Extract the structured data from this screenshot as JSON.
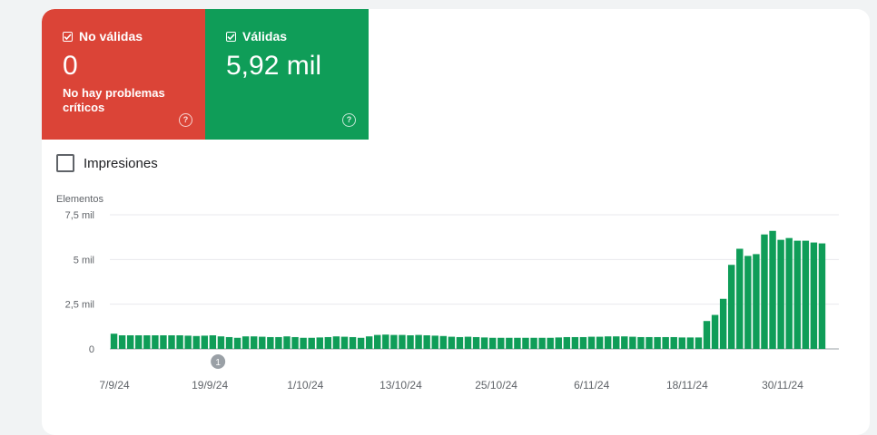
{
  "status": {
    "invalid": {
      "label": "No válidas",
      "value": "0",
      "subtitle": "No hay problemas críticos",
      "color": "#db4437",
      "icon": "checkbox-checked-icon",
      "help_icon": "help-circle-icon"
    },
    "valid": {
      "label": "Válidas",
      "value": "5,92 mil",
      "color": "#0f9d58",
      "icon": "checkbox-checked-icon",
      "help_icon": "help-circle-icon"
    }
  },
  "impressions_toggle": {
    "label": "Impresiones",
    "checked": false
  },
  "chart_data": {
    "type": "bar",
    "ylabel": "Elementos",
    "yticks": [
      "0",
      "2,5 mil",
      "5 mil",
      "7,5 mil"
    ],
    "ylim": [
      0,
      7500
    ],
    "xticks": [
      "7/9/24",
      "19/9/24",
      "1/10/24",
      "13/10/24",
      "25/10/24",
      "6/11/24",
      "18/11/24",
      "30/11/24"
    ],
    "annotation": {
      "label": "1",
      "x": "19/9/24"
    },
    "color": "#0f9d58",
    "grid": true,
    "values": [
      850,
      760,
      760,
      760,
      760,
      760,
      760,
      760,
      760,
      740,
      720,
      740,
      760,
      700,
      660,
      620,
      700,
      700,
      680,
      660,
      660,
      700,
      660,
      620,
      620,
      640,
      660,
      700,
      680,
      660,
      620,
      700,
      780,
      800,
      780,
      780,
      760,
      780,
      760,
      740,
      720,
      680,
      660,
      680,
      660,
      640,
      620,
      620,
      620,
      620,
      620,
      620,
      620,
      620,
      640,
      660,
      660,
      660,
      680,
      680,
      700,
      700,
      700,
      680,
      660,
      660,
      660,
      660,
      660,
      640,
      640,
      640,
      1560,
      1900,
      2800,
      4700,
      5600,
      5200,
      5300,
      6400,
      6600,
      6100,
      6200,
      6050,
      6050,
      5950,
      5900
    ]
  }
}
